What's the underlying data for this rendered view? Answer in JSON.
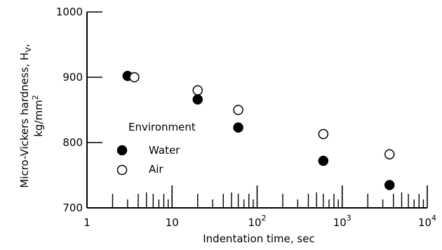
{
  "chart_data": {
    "type": "scatter",
    "title": "",
    "xlabel": "Indentation time, sec",
    "ylabel_line1": "Micro-Vickers hardness, H",
    "ylabel_subscript": "V",
    "ylabel_line1_tail": ",",
    "ylabel_line2": "kg/mm",
    "ylabel_line2_sup": "2",
    "xscale": "log",
    "xlim": [
      1,
      10000
    ],
    "ylim": [
      700,
      1000
    ],
    "x_ticks": [
      {
        "value": 1,
        "label": "1",
        "exp": ""
      },
      {
        "value": 10,
        "label": "10",
        "exp": ""
      },
      {
        "value": 100,
        "label": "10",
        "exp": "2"
      },
      {
        "value": 1000,
        "label": "10",
        "exp": "3"
      },
      {
        "value": 10000,
        "label": "10",
        "exp": "4"
      }
    ],
    "y_ticks": [
      {
        "value": 700,
        "label": "700"
      },
      {
        "value": 800,
        "label": "800"
      },
      {
        "value": 900,
        "label": "900"
      },
      {
        "value": 1000,
        "label": "1000"
      }
    ],
    "grid": false,
    "legend_title": "Environment",
    "legend_position": "center-left",
    "series": [
      {
        "name": "Water",
        "marker": "filled-circle",
        "x": [
          3,
          20,
          60,
          600,
          3600
        ],
        "y": [
          902,
          866,
          823,
          772,
          735
        ]
      },
      {
        "name": "Air",
        "marker": "open-circle",
        "x": [
          3.6,
          20,
          60,
          600,
          3600
        ],
        "y": [
          900,
          880,
          850,
          813,
          782
        ]
      }
    ]
  }
}
